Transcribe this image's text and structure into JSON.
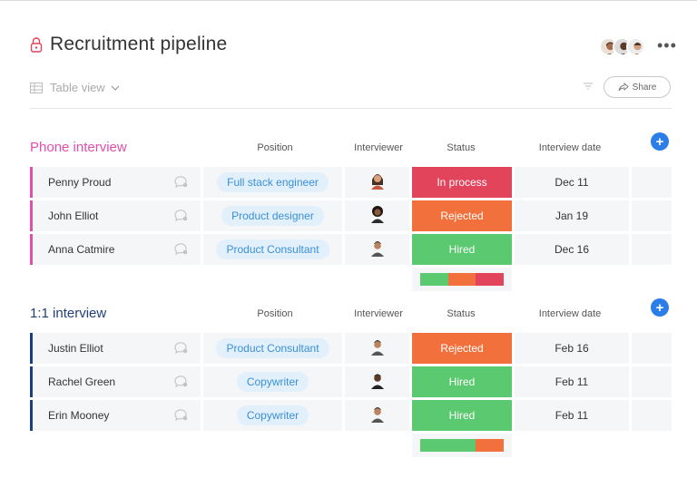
{
  "header": {
    "title": "Recruitment pipeline",
    "more_label": "•••"
  },
  "toolbar": {
    "view_label": "Table view",
    "share_label": "Share"
  },
  "colors": {
    "pink": "#e2445c",
    "orange": "#f2703c",
    "green": "#5ac96f",
    "blue": "#2b7ee8",
    "phone_group": "#e14fae",
    "one_group": "#1f3f7a",
    "pill_text": "#3a8fd6",
    "pill_bg": "#e2f0fc"
  },
  "columns": {
    "position": "Position",
    "interviewer": "Interviewer",
    "status": "Status",
    "date": "Interview date"
  },
  "groups": [
    {
      "title": "Phone interview",
      "rows": [
        {
          "name": "Penny Proud",
          "position": "Full stack engineer",
          "interviewer_icon": "woman-avatar",
          "status": "In process",
          "date": "Dec 11"
        },
        {
          "name": "John Elliot",
          "position": "Product designer",
          "interviewer_icon": "woman-avatar-curly",
          "status": "Rejected",
          "date": "Jan 19"
        },
        {
          "name": "Anna Catmire",
          "position": "Product Consultant",
          "interviewer_icon": "man-avatar",
          "status": "Hired",
          "date": "Dec 16"
        }
      ],
      "summary": [
        {
          "status": "Hired",
          "fraction": 0.333
        },
        {
          "status": "Rejected",
          "fraction": 0.333
        },
        {
          "status": "In process",
          "fraction": 0.334
        }
      ]
    },
    {
      "title": "1:1 interview",
      "rows": [
        {
          "name": "Justin Elliot",
          "position": "Product Consultant",
          "interviewer_icon": "man-avatar",
          "status": "Rejected",
          "date": "Feb 16"
        },
        {
          "name": "Rachel Green",
          "position": "Copywriter",
          "interviewer_icon": "man-avatar-dark",
          "status": "Hired",
          "date": "Feb 11"
        },
        {
          "name": "Erin Mooney",
          "position": "Copywriter",
          "interviewer_icon": "man-avatar",
          "status": "Hired",
          "date": "Feb 11"
        }
      ],
      "summary": [
        {
          "status": "Hired",
          "fraction": 0.667
        },
        {
          "status": "Rejected",
          "fraction": 0.333
        }
      ]
    }
  ]
}
